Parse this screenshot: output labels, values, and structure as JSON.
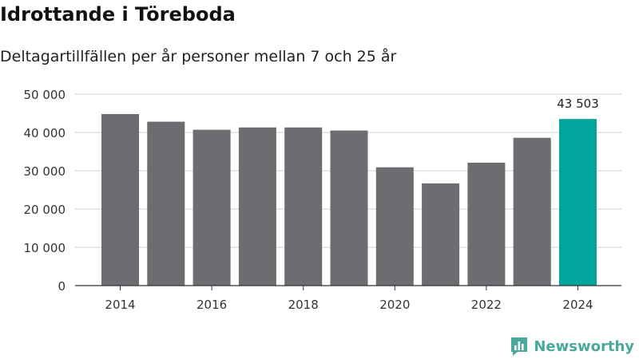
{
  "header": {
    "title": "Idrottande i Töreboda",
    "subtitle": "Deltagartillfällen per år personer mellan 7 och 25 år"
  },
  "chart_data": {
    "type": "bar",
    "title": "Idrottande i Töreboda",
    "subtitle": "Deltagartillfällen per år personer mellan 7 och 25 år",
    "xlabel": "",
    "ylabel": "",
    "categories": [
      "2014",
      "2015",
      "2016",
      "2017",
      "2018",
      "2019",
      "2020",
      "2021",
      "2022",
      "2023",
      "2024"
    ],
    "values": [
      44800,
      42800,
      40700,
      41300,
      41300,
      40500,
      30900,
      26700,
      32100,
      38600,
      43503
    ],
    "ylim": [
      0,
      50000
    ],
    "yticks": [
      0,
      10000,
      20000,
      30000,
      40000,
      50000
    ],
    "ytick_labels": [
      "0",
      "10 000",
      "20 000",
      "30 000",
      "40 000",
      "50 000"
    ],
    "xtick_labels": [
      "2014",
      "",
      "2016",
      "",
      "2018",
      "",
      "2020",
      "",
      "2022",
      "",
      "2024"
    ],
    "highlight_index": 10,
    "highlight_label": "43 503",
    "grid": true,
    "colors": {
      "bar": "#6d6c70",
      "highlight": "#00a59b",
      "grid": "#d9d9d9",
      "axis": "#333333"
    }
  },
  "footer": {
    "brand": "Newsworthy",
    "logo_icon": "bar-chart-icon",
    "brand_color": "#4aa99a"
  }
}
